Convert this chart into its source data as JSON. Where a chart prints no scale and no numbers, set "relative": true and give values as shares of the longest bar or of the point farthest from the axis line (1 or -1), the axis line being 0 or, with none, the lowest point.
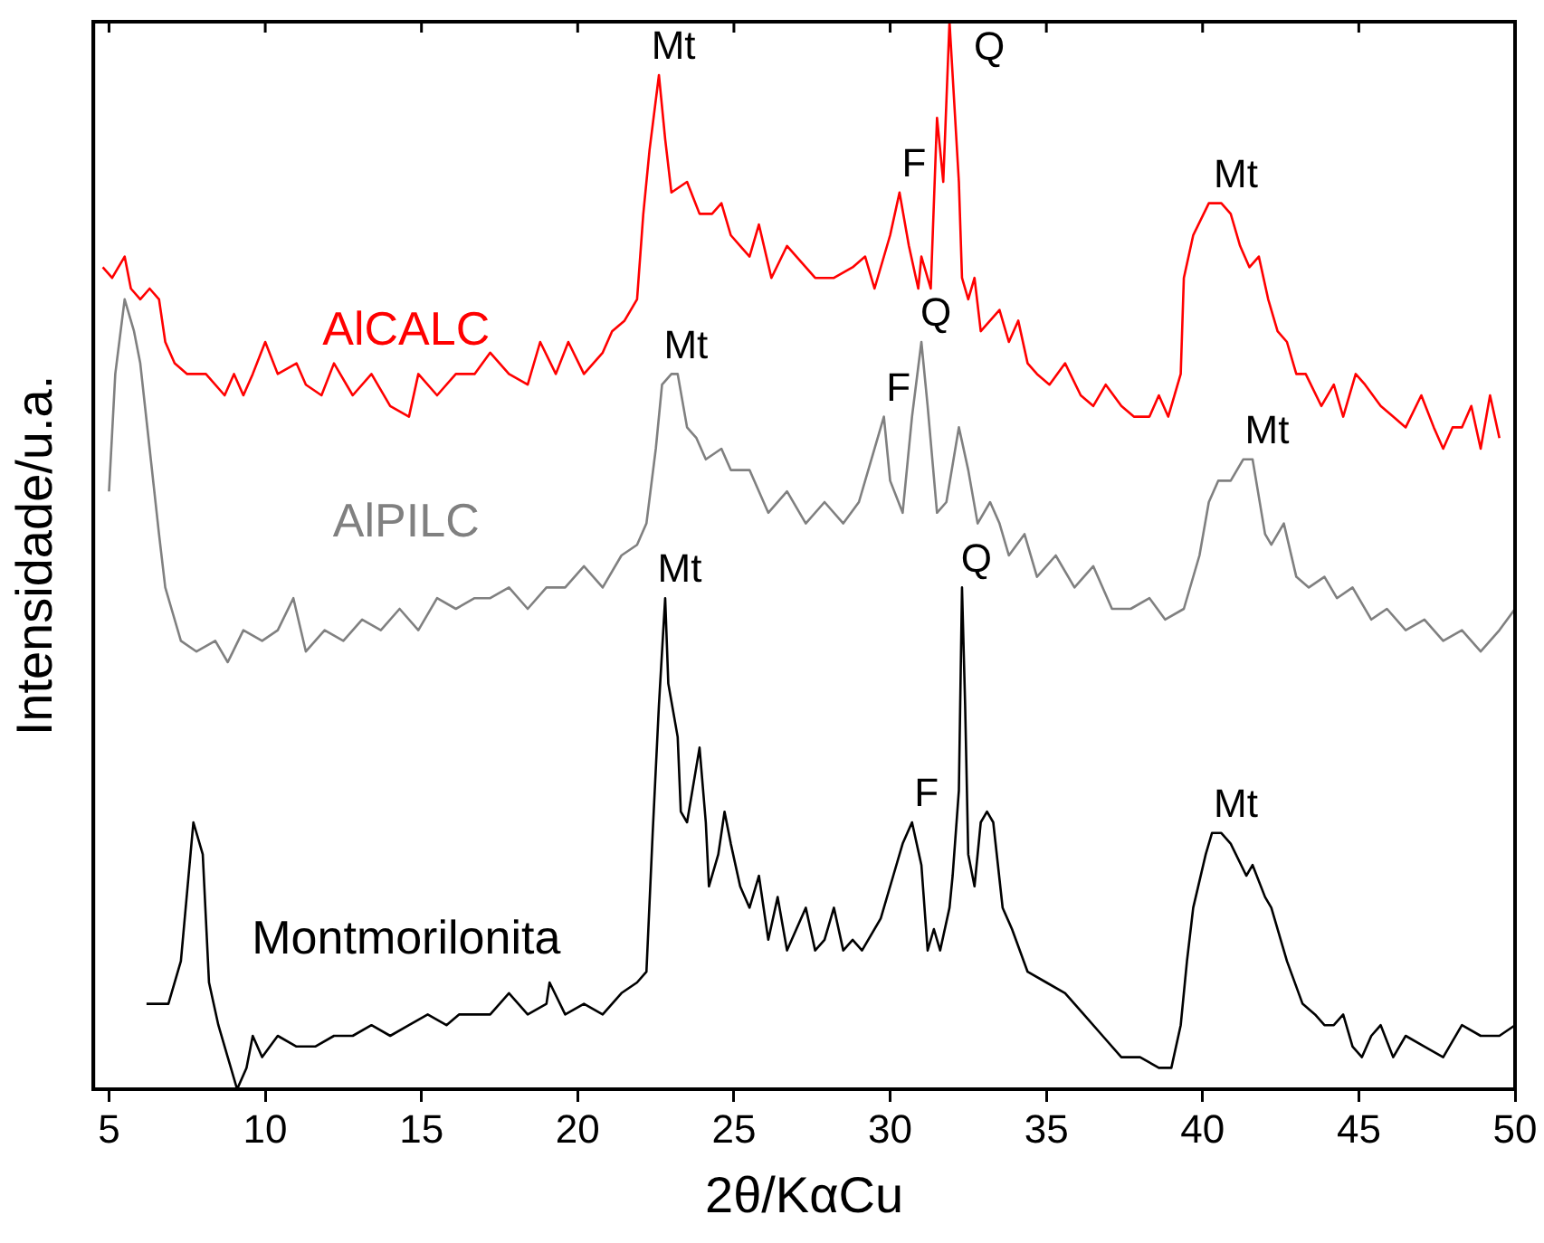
{
  "chart_data": {
    "type": "line",
    "relative": true,
    "xlabel": "2θ/KαCu",
    "ylabel": "Intensidade/u.a.",
    "xlim": [
      4.5,
      50
    ],
    "xticks": [
      5,
      10,
      15,
      20,
      25,
      30,
      35,
      40,
      45,
      50
    ],
    "grid": false,
    "legend": false,
    "series": [
      {
        "name": "AlCALC",
        "color": "#ff0000",
        "x": [
          4.8,
          5.1,
          5.5,
          5.7,
          6.0,
          6.3,
          6.6,
          6.8,
          7.1,
          7.5,
          8.1,
          8.7,
          9.0,
          9.3,
          9.6,
          10.0,
          10.4,
          11.0,
          11.3,
          11.8,
          12.2,
          12.8,
          13.4,
          14.0,
          14.6,
          14.9,
          15.5,
          16.1,
          16.7,
          17.2,
          17.8,
          18.4,
          18.8,
          19.3,
          19.7,
          20.2,
          20.8,
          21.1,
          21.5,
          21.9,
          22.1,
          22.3,
          22.6,
          22.8,
          23.0,
          23.5,
          23.9,
          24.3,
          24.6,
          24.9,
          25.2,
          25.5,
          25.8,
          26.2,
          26.7,
          27.0,
          27.6,
          28.2,
          28.8,
          29.2,
          29.5,
          30.0,
          30.3,
          30.6,
          30.9,
          31.0,
          31.3,
          31.5,
          31.7,
          31.9,
          32.2,
          32.3,
          32.5,
          32.7,
          32.9,
          33.2,
          33.5,
          33.8,
          34.1,
          34.4,
          34.7,
          35.1,
          35.6,
          36.1,
          36.5,
          36.9,
          37.4,
          37.8,
          38.3,
          38.6,
          38.9,
          39.3,
          39.4,
          39.7,
          40.2,
          40.6,
          40.9,
          41.2,
          41.5,
          41.8,
          42.1,
          42.4,
          42.7,
          43.0,
          43.3,
          43.8,
          44.2,
          44.5,
          44.9,
          45.2,
          45.7,
          46.1,
          46.5,
          47.0,
          47.4,
          47.7,
          48.0,
          48.3,
          48.6,
          48.9,
          49.2,
          49.5
        ],
        "values": [
          0.77,
          0.76,
          0.78,
          0.75,
          0.74,
          0.75,
          0.74,
          0.7,
          0.68,
          0.67,
          0.67,
          0.65,
          0.67,
          0.65,
          0.67,
          0.7,
          0.67,
          0.68,
          0.66,
          0.65,
          0.68,
          0.65,
          0.67,
          0.64,
          0.63,
          0.67,
          0.65,
          0.67,
          0.67,
          0.69,
          0.67,
          0.66,
          0.7,
          0.67,
          0.7,
          0.67,
          0.69,
          0.71,
          0.72,
          0.74,
          0.82,
          0.88,
          0.95,
          0.89,
          0.84,
          0.85,
          0.82,
          0.82,
          0.83,
          0.8,
          0.79,
          0.78,
          0.81,
          0.76,
          0.79,
          0.78,
          0.76,
          0.76,
          0.77,
          0.78,
          0.75,
          0.8,
          0.84,
          0.79,
          0.75,
          0.78,
          0.75,
          0.91,
          0.85,
          1,
          0.85,
          0.76,
          0.74,
          0.76,
          0.71,
          0.72,
          0.73,
          0.7,
          0.72,
          0.68,
          0.67,
          0.66,
          0.68,
          0.65,
          0.64,
          0.66,
          0.64,
          0.63,
          0.63,
          0.65,
          0.63,
          0.67,
          0.76,
          0.8,
          0.83,
          0.83,
          0.82,
          0.79,
          0.77,
          0.78,
          0.74,
          0.71,
          0.7,
          0.67,
          0.67,
          0.64,
          0.66,
          0.63,
          0.67,
          0.66,
          0.64,
          0.63,
          0.62,
          0.65,
          0.62,
          0.6,
          0.62,
          0.62,
          0.64,
          0.6,
          0.65,
          0.61
        ]
      },
      {
        "name": "AlPILC",
        "color": "#808080",
        "x": [
          5.0,
          5.2,
          5.5,
          5.8,
          6.0,
          6.3,
          6.6,
          6.8,
          7.0,
          7.3,
          7.8,
          8.4,
          8.8,
          9.3,
          9.9,
          10.4,
          10.9,
          11.3,
          11.9,
          12.5,
          13.1,
          13.7,
          14.3,
          14.9,
          15.5,
          16.1,
          16.7,
          17.2,
          17.8,
          18.4,
          19.0,
          19.6,
          20.2,
          20.8,
          21.4,
          21.9,
          22.2,
          22.5,
          22.7,
          23.0,
          23.2,
          23.5,
          23.8,
          24.1,
          24.6,
          24.9,
          25.5,
          26.1,
          26.7,
          27.3,
          27.9,
          28.5,
          29.0,
          29.3,
          29.8,
          30.0,
          30.4,
          30.7,
          31.0,
          31.2,
          31.5,
          31.8,
          32.2,
          32.5,
          32.8,
          33.2,
          33.5,
          33.8,
          34.3,
          34.7,
          35.3,
          35.9,
          36.5,
          37.1,
          37.7,
          38.3,
          38.8,
          39.4,
          39.9,
          40.2,
          40.5,
          40.9,
          41.3,
          41.6,
          42.0,
          42.2,
          42.6,
          43.0,
          43.4,
          43.9,
          44.3,
          44.8,
          45.4,
          45.9,
          46.5,
          47.1,
          47.7,
          48.3,
          48.9,
          49.5,
          50.0
        ],
        "values": [
          0.56,
          0.67,
          0.74,
          0.71,
          0.68,
          0.6,
          0.52,
          0.47,
          0.45,
          0.42,
          0.41,
          0.42,
          0.4,
          0.43,
          0.42,
          0.43,
          0.46,
          0.41,
          0.43,
          0.42,
          0.44,
          0.43,
          0.45,
          0.43,
          0.46,
          0.45,
          0.46,
          0.46,
          0.47,
          0.45,
          0.47,
          0.47,
          0.49,
          0.47,
          0.5,
          0.51,
          0.53,
          0.6,
          0.66,
          0.67,
          0.67,
          0.62,
          0.61,
          0.59,
          0.6,
          0.58,
          0.58,
          0.54,
          0.56,
          0.53,
          0.55,
          0.53,
          0.55,
          0.58,
          0.63,
          0.57,
          0.54,
          0.63,
          0.7,
          0.64,
          0.54,
          0.55,
          0.62,
          0.58,
          0.53,
          0.55,
          0.53,
          0.5,
          0.52,
          0.48,
          0.5,
          0.47,
          0.49,
          0.45,
          0.45,
          0.46,
          0.44,
          0.45,
          0.5,
          0.55,
          0.57,
          0.57,
          0.59,
          0.59,
          0.52,
          0.51,
          0.53,
          0.48,
          0.47,
          0.48,
          0.46,
          0.47,
          0.44,
          0.45,
          0.43,
          0.44,
          0.42,
          0.43,
          0.41,
          0.43,
          0.45
        ]
      },
      {
        "name": "Montmorilonita",
        "color": "#000000",
        "x": [
          6.2,
          6.9,
          7.3,
          7.7,
          8.0,
          8.2,
          8.5,
          8.8,
          9.1,
          9.4,
          9.6,
          9.9,
          10.4,
          11.0,
          11.6,
          12.2,
          12.8,
          13.4,
          14.0,
          14.6,
          15.2,
          15.8,
          16.2,
          16.7,
          17.2,
          17.8,
          18.4,
          19.0,
          19.1,
          19.6,
          20.2,
          20.8,
          21.4,
          21.9,
          22.2,
          22.4,
          22.6,
          22.8,
          22.9,
          23.2,
          23.3,
          23.5,
          23.9,
          24.1,
          24.2,
          24.5,
          24.7,
          24.9,
          25.2,
          25.5,
          25.8,
          26.1,
          26.4,
          26.7,
          27.0,
          27.3,
          27.6,
          27.9,
          28.2,
          28.5,
          28.8,
          29.1,
          29.7,
          30.1,
          30.4,
          30.7,
          31.0,
          31.2,
          31.4,
          31.6,
          31.9,
          32.0,
          32.2,
          32.3,
          32.4,
          32.5,
          32.7,
          32.9,
          33.1,
          33.3,
          33.6,
          33.9,
          34.4,
          35.0,
          35.6,
          36.2,
          36.8,
          37.4,
          38.0,
          38.6,
          39.0,
          39.3,
          39.5,
          39.7,
          40.1,
          40.3,
          40.6,
          40.9,
          41.4,
          41.6,
          42.0,
          42.2,
          42.7,
          43.2,
          43.6,
          43.9,
          44.2,
          44.5,
          44.8,
          45.1,
          45.4,
          45.7,
          46.1,
          46.5,
          47.1,
          47.7,
          48.3,
          48.9,
          49.5,
          50.0
        ],
        "values": [
          0.08,
          0.08,
          0.12,
          0.25,
          0.22,
          0.1,
          0.06,
          0.03,
          0.0,
          0.02,
          0.05,
          0.03,
          0.05,
          0.04,
          0.04,
          0.05,
          0.05,
          0.06,
          0.05,
          0.06,
          0.07,
          0.06,
          0.07,
          0.07,
          0.07,
          0.09,
          0.07,
          0.08,
          0.1,
          0.07,
          0.08,
          0.07,
          0.09,
          0.1,
          0.11,
          0.24,
          0.36,
          0.46,
          0.38,
          0.33,
          0.26,
          0.25,
          0.32,
          0.25,
          0.19,
          0.22,
          0.26,
          0.23,
          0.19,
          0.17,
          0.2,
          0.14,
          0.18,
          0.13,
          0.15,
          0.17,
          0.13,
          0.14,
          0.17,
          0.13,
          0.14,
          0.13,
          0.16,
          0.2,
          0.23,
          0.25,
          0.21,
          0.13,
          0.15,
          0.13,
          0.17,
          0.2,
          0.28,
          0.47,
          0.36,
          0.22,
          0.19,
          0.25,
          0.26,
          0.25,
          0.17,
          0.15,
          0.11,
          0.1,
          0.09,
          0.07,
          0.05,
          0.03,
          0.03,
          0.02,
          0.02,
          0.06,
          0.12,
          0.17,
          0.22,
          0.24,
          0.24,
          0.23,
          0.2,
          0.21,
          0.18,
          0.17,
          0.12,
          0.08,
          0.07,
          0.06,
          0.06,
          0.07,
          0.04,
          0.03,
          0.05,
          0.06,
          0.03,
          0.05,
          0.04,
          0.03,
          0.06,
          0.05,
          0.05,
          0.06
        ]
      }
    ],
    "annotations": [
      {
        "text": "Mt",
        "x": 22.6,
        "y": 0.95
      },
      {
        "text": "F",
        "x": 30.3,
        "y": 0.84
      },
      {
        "text": "Q",
        "x": 31.9,
        "y": 1
      },
      {
        "text": "Mt",
        "x": 40.6,
        "y": 0.83
      },
      {
        "text": "Mt",
        "x": 23.0,
        "y": 0.67
      },
      {
        "text": "F",
        "x": 29.8,
        "y": 0.63
      },
      {
        "text": "Q",
        "x": 31.0,
        "y": 0.7
      },
      {
        "text": "Mt",
        "x": 41.6,
        "y": 0.59
      },
      {
        "text": "Mt",
        "x": 22.8,
        "y": 0.46
      },
      {
        "text": "F",
        "x": 30.7,
        "y": 0.25
      },
      {
        "text": "Q",
        "x": 32.3,
        "y": 0.47
      },
      {
        "text": "Mt",
        "x": 40.6,
        "y": 0.24
      }
    ]
  }
}
